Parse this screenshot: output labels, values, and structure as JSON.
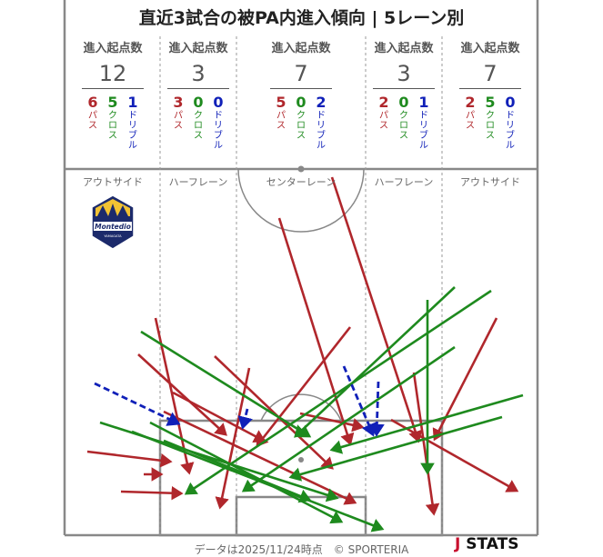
{
  "title": "直近3試合の被PA内進入傾向 | 5レーン別",
  "lanes": [
    {
      "header": "進入起点数",
      "total": "12",
      "pass": "6",
      "cross": "5",
      "dribble": "1",
      "name": "アウトサイド"
    },
    {
      "header": "進入起点数",
      "total": "3",
      "pass": "3",
      "cross": "0",
      "dribble": "0",
      "name": "ハーフレーン"
    },
    {
      "header": "進入起点数",
      "total": "7",
      "pass": "5",
      "cross": "0",
      "dribble": "2",
      "name": "センターレーン"
    },
    {
      "header": "進入起点数",
      "total": "3",
      "pass": "2",
      "cross": "0",
      "dribble": "1",
      "name": "ハーフレーン"
    },
    {
      "header": "進入起点数",
      "total": "7",
      "pass": "2",
      "cross": "5",
      "dribble": "0",
      "name": "アウトサイド"
    }
  ],
  "labels": {
    "pass": "パス",
    "cross": "クロス",
    "dribble": "ドリブル"
  },
  "team_logo_text": "Montedio",
  "team_logo_sub": "YAMAGATA",
  "footer": "データは2025/11/24時点　© SPORTERIA",
  "stats_logo": {
    "mark": "J",
    "text": "STATS"
  },
  "colors": {
    "pass": "#b0272c",
    "cross": "#1e8a1e",
    "dribble": "#1020b8",
    "lines": "#888888"
  }
}
